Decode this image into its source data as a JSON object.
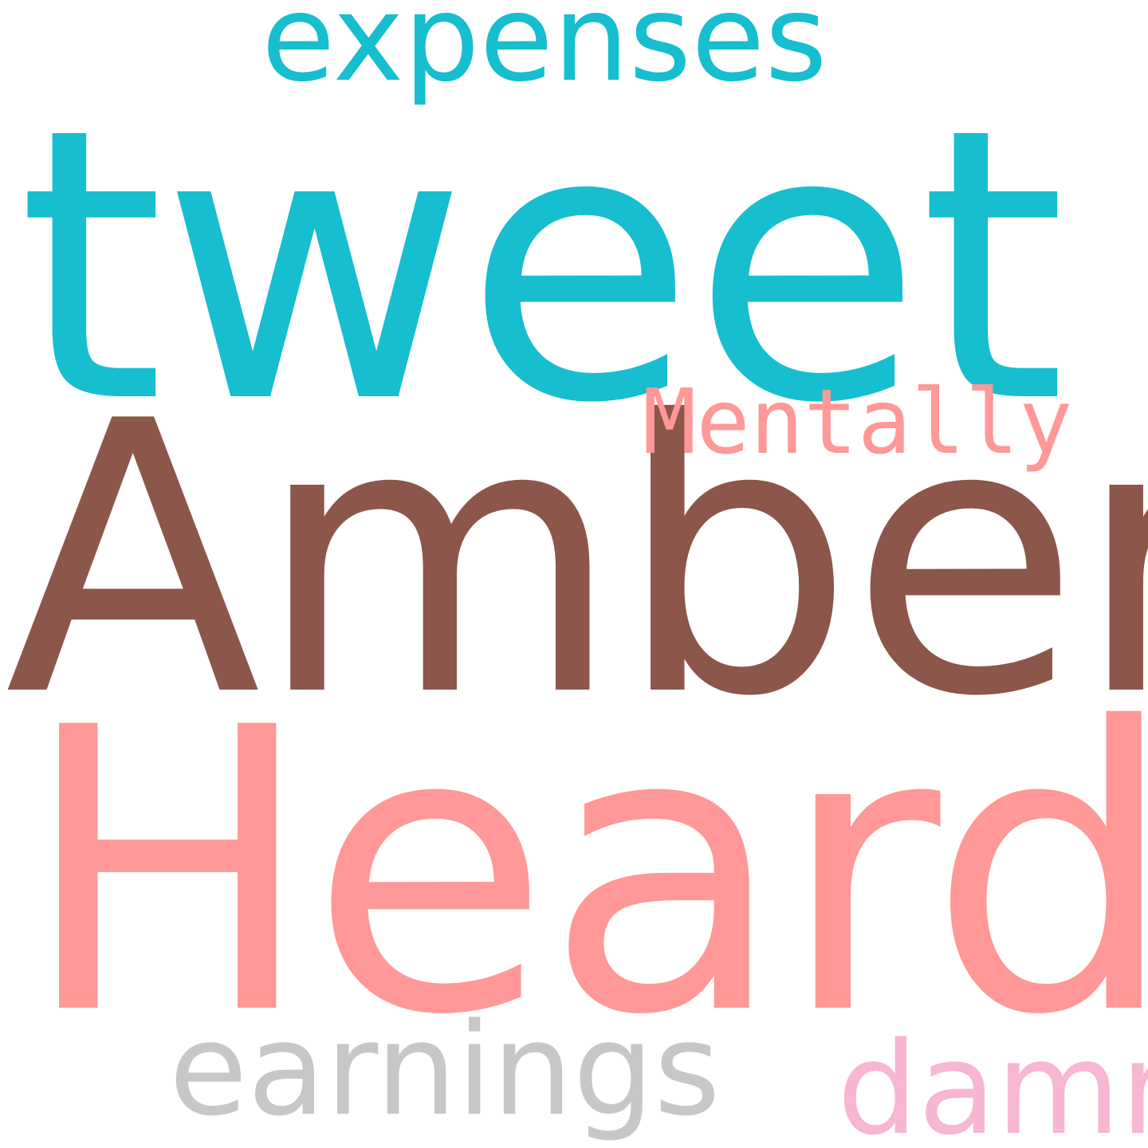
{
  "words": {
    "expenses": {
      "text": "expenses",
      "color": "#17becf"
    },
    "tweet": {
      "text": "tweet",
      "color": "#17becf"
    },
    "mentally": {
      "text": "Mentally",
      "color": "#ff9896"
    },
    "amber": {
      "text": "Amber",
      "color": "#8c564b"
    },
    "heard": {
      "text": "Heard",
      "color": "#ff9896"
    },
    "earnings": {
      "text": "earnings",
      "color": "#c7c7c7"
    },
    "damn": {
      "text": "damn",
      "color": "#f7b6d2"
    }
  }
}
